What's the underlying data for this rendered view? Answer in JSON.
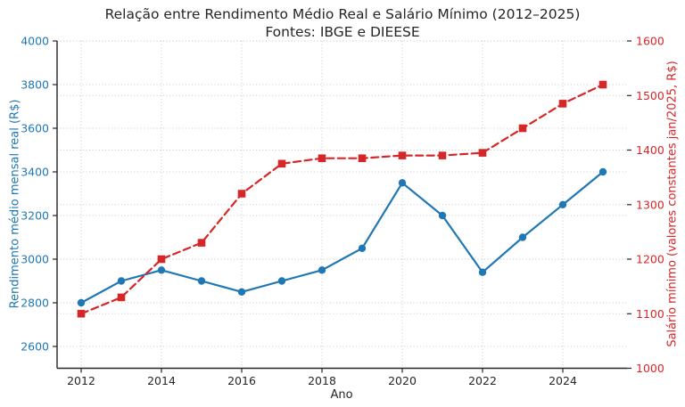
{
  "header": {
    "title": "Relação entre Rendimento Médio Real e Salário Mínimo (2012–2025)",
    "subtitle": "Fontes: IBGE e DIEESE"
  },
  "chart_data": {
    "type": "line",
    "title": "Relação entre Rendimento Médio Real e Salário Mínimo (2012–2025)",
    "subtitle": "Fontes: IBGE e DIEESE",
    "xlabel": "Ano",
    "x": [
      2012,
      2013,
      2014,
      2015,
      2016,
      2017,
      2018,
      2019,
      2020,
      2021,
      2022,
      2023,
      2024,
      2025
    ],
    "x_ticks": [
      2012,
      2014,
      2016,
      2018,
      2020,
      2022,
      2024
    ],
    "xlim": [
      2011.4,
      2025.6
    ],
    "grid": true,
    "legend": "none",
    "series": [
      {
        "name": "Rendimento médio mensal real (R$)",
        "axis": "left",
        "color": "#1f77b4",
        "line_style": "solid",
        "marker": "circle",
        "values": [
          2800,
          2900,
          2950,
          2900,
          2850,
          2900,
          2950,
          3050,
          3350,
          3200,
          2940,
          3100,
          3250,
          3400
        ]
      },
      {
        "name": "Salário mínimo (valores constantes jan/2025, R$)",
        "axis": "right",
        "color": "#d62728",
        "line_style": "dashed",
        "marker": "square",
        "values": [
          1100,
          1130,
          1200,
          1230,
          1320,
          1375,
          1385,
          1385,
          1390,
          1390,
          1395,
          1440,
          1485,
          1520
        ]
      }
    ],
    "left_axis": {
      "label": "Rendimento médio mensal real (R$)",
      "ticks": [
        2600,
        2800,
        3000,
        3200,
        3400,
        3600,
        3800,
        4000
      ],
      "range": [
        2500,
        4000
      ],
      "color": "#1f77b4"
    },
    "right_axis": {
      "label": "Salário mínimo (valores constantes jan/2025, R$)",
      "ticks": [
        1000,
        1100,
        1200,
        1300,
        1400,
        1500,
        1600
      ],
      "range": [
        1000,
        1600
      ],
      "color": "#d62728"
    }
  },
  "colors": {
    "rendimento_blue": "#1f77b4",
    "salario_red": "#d62728",
    "title_text": "#262626",
    "spine": "#262626",
    "grid": "#c9c9c9",
    "background": "#ffffff"
  }
}
